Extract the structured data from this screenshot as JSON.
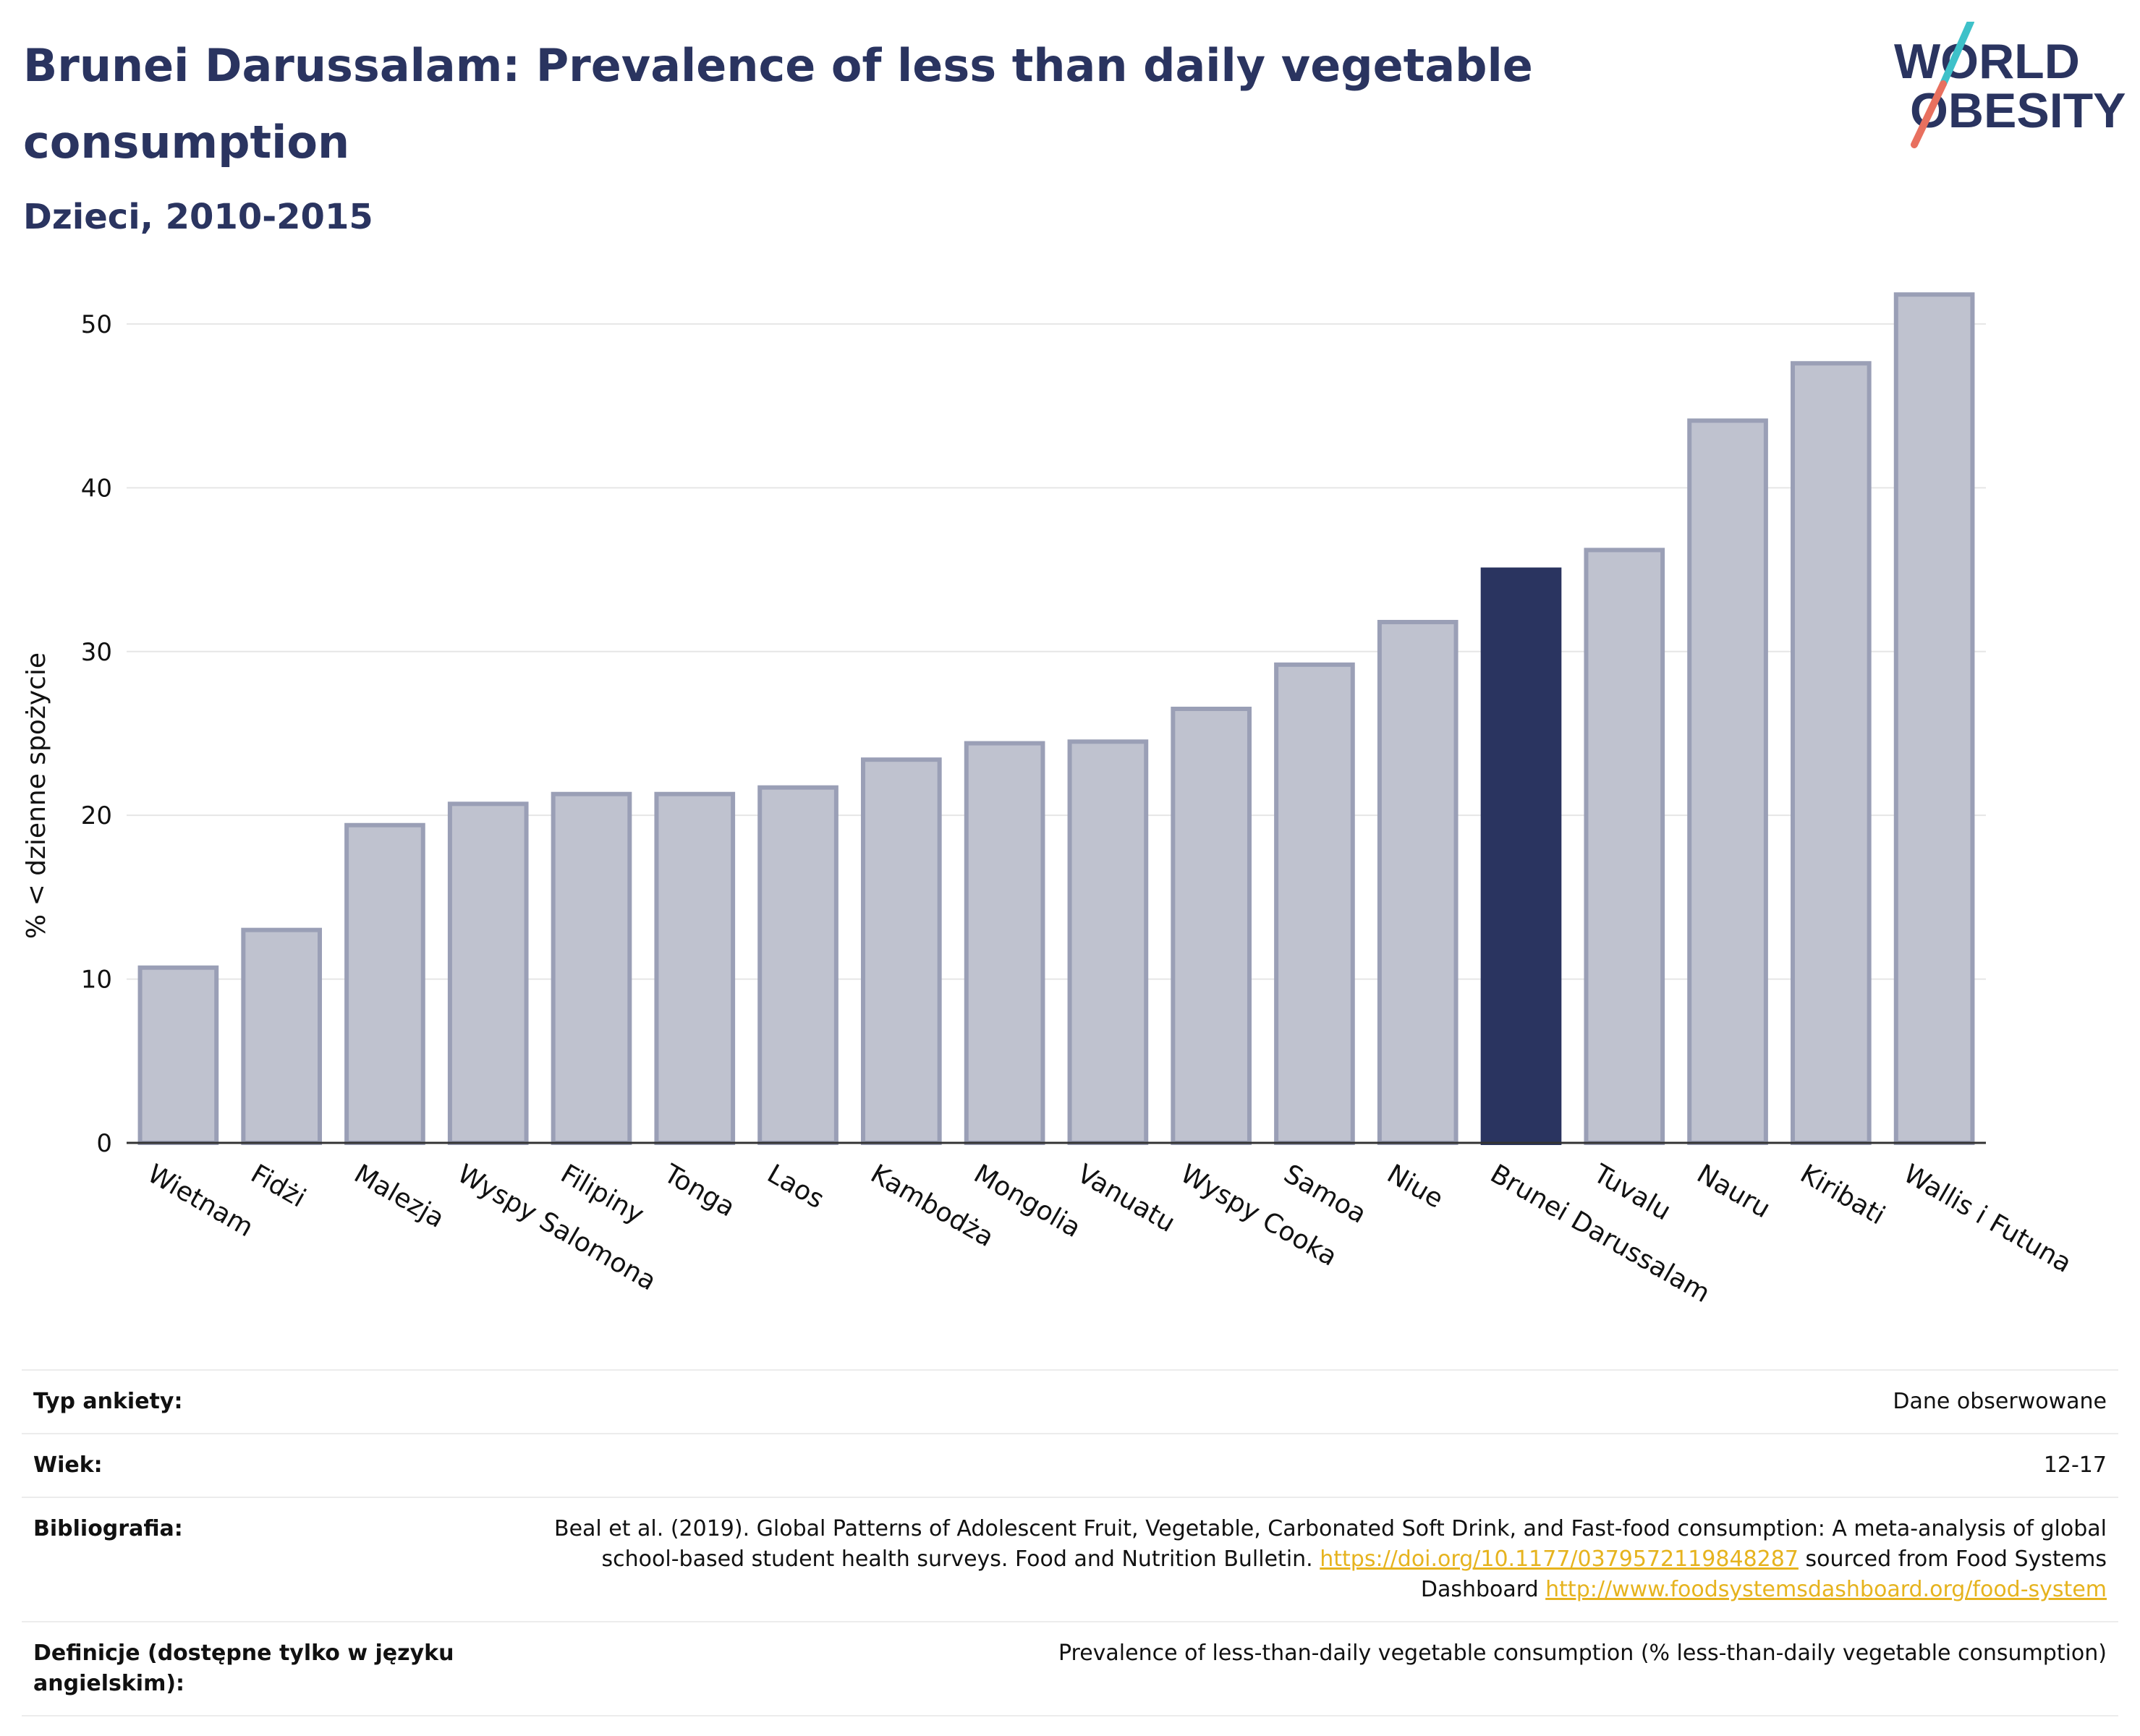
{
  "header": {
    "title": "Brunei Darussalam: Prevalence of less than daily vegetable consumption",
    "subtitle": "Dzieci, 2010-2015"
  },
  "logo": {
    "line1": "WORLD",
    "line2": "OBESITY"
  },
  "colors": {
    "highlight": "#2a3460",
    "bar_fill": "#bfc2cf",
    "bar_stroke": "#9a9fb6",
    "logo_teal": "#3ec1c9",
    "logo_coral": "#e8705f",
    "link": "#e6b31e"
  },
  "chart_data": {
    "type": "bar",
    "categories": [
      "Wietnam",
      "Fidżi",
      "Malezja",
      "Wyspy Salomona",
      "Filipiny",
      "Tonga",
      "Laos",
      "Kambodża",
      "Mongolia",
      "Vanuatu",
      "Wyspy Cooka",
      "Samoa",
      "Niue",
      "Brunei Darussalam",
      "Tuvalu",
      "Nauru",
      "Kiribati",
      "Wallis i Futuna"
    ],
    "values": [
      10.7,
      13.0,
      19.4,
      20.7,
      21.3,
      21.3,
      21.7,
      23.4,
      24.4,
      24.5,
      26.5,
      29.2,
      31.8,
      35.0,
      36.2,
      44.1,
      47.6,
      51.8
    ],
    "highlight": "Brunei Darussalam",
    "ylabel": "% < dzienne spożycie",
    "xlabel": "",
    "ylim": [
      0,
      53
    ],
    "yticks": [
      0,
      10,
      20,
      30,
      40,
      50
    ],
    "grid": true
  },
  "info": {
    "survey_label": "Typ ankiety:",
    "survey_value": "Dane obserwowane",
    "age_label": "Wiek:",
    "age_value": "12-17",
    "biblio_label": "Bibliografia:",
    "biblio_text1": "Beal et al. (2019). Global Patterns of Adolescent Fruit, Vegetable, Carbonated Soft Drink, and Fast-food consumption: A meta-analysis of global school-based student health surveys. Food and Nutrition Bulletin. ",
    "biblio_link1": "https://doi.org/10.1177/0379572119848287",
    "biblio_text2": " sourced from Food Systems Dashboard ",
    "biblio_link2": "http://www.foodsystemsdashboard.org/food-system",
    "def_label": "Definicje (dostępne tylko w języku angielskim):",
    "def_value": "Prevalence of less-than-daily vegetable consumption (% less-than-daily vegetable consumption)"
  }
}
